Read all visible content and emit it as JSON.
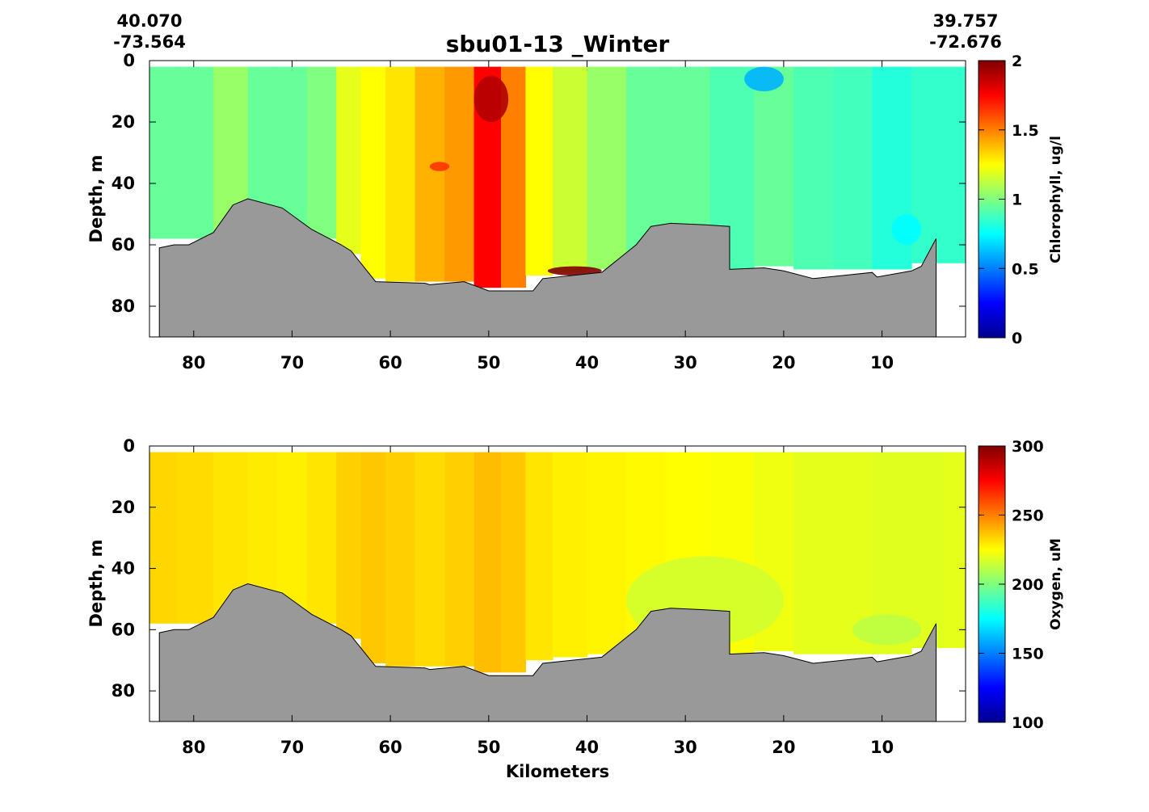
{
  "title": "sbu01-13 _Winter",
  "endpoints": {
    "left_lat": "40.070",
    "left_lon": "-73.564",
    "right_lat": "39.757",
    "right_lon": "-72.676"
  },
  "xlabel": "Kilometers",
  "chart_data": [
    {
      "type": "heatmap",
      "ylabel": "Depth, m",
      "colorbar_label": "Chlorophyll, ug/l",
      "xlim": [
        84.5,
        1.5
      ],
      "ylim": [
        0,
        90
      ],
      "x_ticks": [
        80,
        70,
        60,
        50,
        40,
        30,
        20,
        10
      ],
      "y_ticks": [
        0,
        20,
        40,
        60,
        80
      ],
      "colorbar_range": [
        0,
        2
      ],
      "colorbar_ticks": [
        "0",
        "0.5",
        "1",
        "1.5",
        "2"
      ],
      "colorbar_tick_values": [
        0,
        0.5,
        1,
        1.5,
        2
      ],
      "colormap": "jet",
      "profiles": [
        {
          "x": 83.5,
          "v": 0.95,
          "bottom": 58
        },
        {
          "x": 80,
          "v": 0.95,
          "bottom": 58
        },
        {
          "x": 76,
          "v": 1.05,
          "bottom": 57
        },
        {
          "x": 73,
          "v": 0.95,
          "bottom": 57
        },
        {
          "x": 70,
          "v": 0.95,
          "bottom": 57
        },
        {
          "x": 67,
          "v": 1.0,
          "bottom": 58
        },
        {
          "x": 64,
          "v": 1.2,
          "bottom": 63
        },
        {
          "x": 62,
          "v": 1.25,
          "bottom": 71
        },
        {
          "x": 59,
          "v": 1.3,
          "bottom": 72
        },
        {
          "x": 56,
          "v": 1.4,
          "bottom": 72
        },
        {
          "x": 53,
          "v": 1.45,
          "bottom": 72
        },
        {
          "x": 50,
          "v": 1.75,
          "bottom": 74
        },
        {
          "x": 47.5,
          "v": 1.5,
          "bottom": 74
        },
        {
          "x": 45,
          "v": 1.25,
          "bottom": 70
        },
        {
          "x": 42,
          "v": 1.15,
          "bottom": 69
        },
        {
          "x": 38,
          "v": 1.05,
          "bottom": 68
        },
        {
          "x": 34,
          "v": 0.95,
          "bottom": 64
        },
        {
          "x": 30,
          "v": 0.95,
          "bottom": 64
        },
        {
          "x": 25,
          "v": 0.9,
          "bottom": 68
        },
        {
          "x": 21,
          "v": 0.95,
          "bottom": 67
        },
        {
          "x": 17,
          "v": 0.9,
          "bottom": 68
        },
        {
          "x": 13,
          "v": 0.88,
          "bottom": 68
        },
        {
          "x": 9,
          "v": 0.82,
          "bottom": 68
        },
        {
          "x": 5,
          "v": 0.85,
          "bottom": 66
        },
        {
          "x": 2.5,
          "v": 0.85,
          "bottom": 66
        }
      ],
      "features": [
        {
          "x": [
            24,
            20
          ],
          "depth": [
            2,
            10
          ],
          "v": 0.6
        },
        {
          "x": [
            51.5,
            48
          ],
          "depth": [
            5,
            20
          ],
          "v": 1.9
        },
        {
          "x": [
            44,
            38.5
          ],
          "depth": [
            67,
            70
          ],
          "v": 2.0
        },
        {
          "x": [
            56,
            54
          ],
          "depth": [
            33,
            36
          ],
          "v": 1.65
        },
        {
          "x": [
            9,
            6
          ],
          "depth": [
            50,
            60
          ],
          "v": 0.75
        }
      ],
      "bathymetry": {
        "x": [
          83.5,
          82,
          80.5,
          78,
          76,
          74.5,
          71,
          68,
          65,
          64,
          61.5,
          56.5,
          56,
          52.5,
          50,
          45.5,
          44.5,
          38.5,
          35,
          33.5,
          31.5,
          28,
          25.5,
          25.5,
          22,
          20,
          17,
          14,
          11,
          10.5,
          7,
          6,
          4.5
        ],
        "depth": [
          61,
          60,
          60,
          56,
          47,
          45,
          48,
          55,
          60,
          62,
          72,
          72.5,
          73,
          72,
          75,
          75,
          71,
          69,
          60,
          54,
          53,
          53.5,
          54,
          68,
          67.5,
          68.5,
          71,
          70,
          69,
          70.5,
          68.5,
          67,
          58
        ]
      }
    },
    {
      "type": "heatmap",
      "ylabel": "Depth, m",
      "colorbar_label": "Oxygen, uM",
      "xlim": [
        84.5,
        1.5
      ],
      "ylim": [
        0,
        90
      ],
      "x_ticks": [
        80,
        70,
        60,
        50,
        40,
        30,
        20,
        10
      ],
      "y_ticks": [
        0,
        20,
        40,
        60,
        80
      ],
      "colorbar_range": [
        100,
        300
      ],
      "colorbar_ticks": [
        "100",
        "150",
        "200",
        "250",
        "300"
      ],
      "colorbar_tick_values": [
        100,
        150,
        200,
        250,
        300
      ],
      "colormap": "jet",
      "profiles": [
        {
          "x": 83.5,
          "v": 233,
          "bottom": 58
        },
        {
          "x": 80,
          "v": 232,
          "bottom": 58
        },
        {
          "x": 76,
          "v": 230,
          "bottom": 57
        },
        {
          "x": 73,
          "v": 229,
          "bottom": 57
        },
        {
          "x": 70,
          "v": 228,
          "bottom": 57
        },
        {
          "x": 67,
          "v": 230,
          "bottom": 58
        },
        {
          "x": 64,
          "v": 234,
          "bottom": 63
        },
        {
          "x": 62,
          "v": 236,
          "bottom": 71
        },
        {
          "x": 59,
          "v": 234,
          "bottom": 72
        },
        {
          "x": 56,
          "v": 232,
          "bottom": 72
        },
        {
          "x": 53,
          "v": 234,
          "bottom": 72
        },
        {
          "x": 50,
          "v": 238,
          "bottom": 74
        },
        {
          "x": 47.5,
          "v": 236,
          "bottom": 74
        },
        {
          "x": 45,
          "v": 230,
          "bottom": 70
        },
        {
          "x": 42,
          "v": 228,
          "bottom": 69
        },
        {
          "x": 38,
          "v": 227,
          "bottom": 68
        },
        {
          "x": 34,
          "v": 226,
          "bottom": 64
        },
        {
          "x": 30,
          "v": 225,
          "bottom": 64
        },
        {
          "x": 25,
          "v": 224,
          "bottom": 68
        },
        {
          "x": 21,
          "v": 222,
          "bottom": 67
        },
        {
          "x": 17,
          "v": 220,
          "bottom": 68
        },
        {
          "x": 13,
          "v": 220,
          "bottom": 68
        },
        {
          "x": 9,
          "v": 219,
          "bottom": 68
        },
        {
          "x": 5,
          "v": 219,
          "bottom": 66
        },
        {
          "x": 2.5,
          "v": 220,
          "bottom": 66
        }
      ],
      "features": [
        {
          "x": [
            36,
            20
          ],
          "depth": [
            36,
            65
          ],
          "v": 216
        },
        {
          "x": [
            13,
            6
          ],
          "depth": [
            55,
            65
          ],
          "v": 212
        }
      ],
      "bathymetry": {
        "x": [
          83.5,
          82,
          80.5,
          78,
          76,
          74.5,
          71,
          68,
          65,
          64,
          61.5,
          56.5,
          56,
          52.5,
          50,
          45.5,
          44.5,
          38.5,
          35,
          33.5,
          31.5,
          28,
          25.5,
          25.5,
          22,
          20,
          17,
          14,
          11,
          10.5,
          7,
          6,
          4.5
        ],
        "depth": [
          61,
          60,
          60,
          56,
          47,
          45,
          48,
          55,
          60,
          62,
          72,
          72.5,
          73,
          72,
          75,
          75,
          71,
          69,
          60,
          54,
          53,
          53.5,
          54,
          68,
          67.5,
          68.5,
          71,
          70,
          69,
          70.5,
          68.5,
          67,
          58
        ]
      }
    }
  ]
}
